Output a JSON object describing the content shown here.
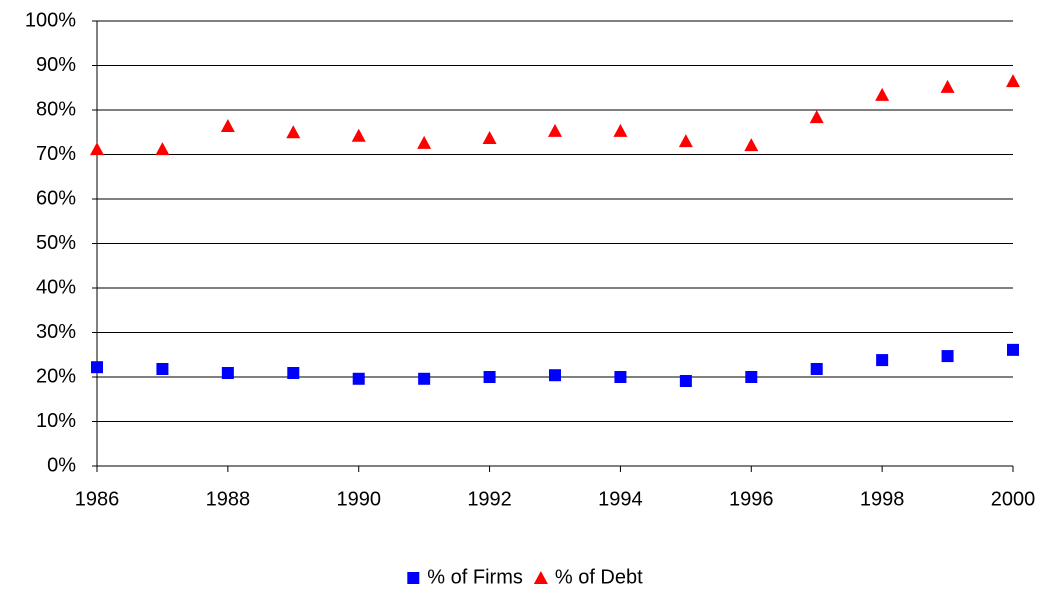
{
  "chart_data": {
    "type": "scatter",
    "x": [
      1986,
      1987,
      1988,
      1989,
      1990,
      1991,
      1992,
      1993,
      1994,
      1995,
      1996,
      1997,
      1998,
      1999,
      2000
    ],
    "series": [
      {
        "name": "% of Firms",
        "color": "#0000ff",
        "marker": "square",
        "values": [
          22.2,
          21.8,
          20.9,
          20.9,
          19.6,
          19.6,
          20.0,
          20.4,
          20.0,
          19.1,
          20.0,
          21.8,
          23.8,
          24.7,
          26.1
        ]
      },
      {
        "name": "% of Debt",
        "color": "#ff0000",
        "marker": "triangle",
        "values": [
          71.2,
          71.2,
          76.4,
          75.0,
          74.2,
          72.6,
          73.7,
          75.3,
          75.3,
          73.0,
          72.1,
          78.4,
          83.4,
          85.2,
          86.5
        ]
      }
    ],
    "xlim": [
      1986,
      2000
    ],
    "xticks": [
      1986,
      1988,
      1990,
      1992,
      1994,
      1996,
      1998,
      2000
    ],
    "ylim": [
      0,
      100
    ],
    "yticks": [
      {
        "value": 0,
        "label": "0%"
      },
      {
        "value": 10,
        "label": "10%"
      },
      {
        "value": 20,
        "label": "20%"
      },
      {
        "value": 30,
        "label": "30%"
      },
      {
        "value": 40,
        "label": "40%"
      },
      {
        "value": 50,
        "label": "50%"
      },
      {
        "value": 60,
        "label": "60%"
      },
      {
        "value": 70,
        "label": "70%"
      },
      {
        "value": 80,
        "label": "80%"
      },
      {
        "value": 90,
        "label": "90%"
      },
      {
        "value": 100,
        "label": "100%"
      }
    ],
    "grid": true,
    "legend": "bottom"
  }
}
